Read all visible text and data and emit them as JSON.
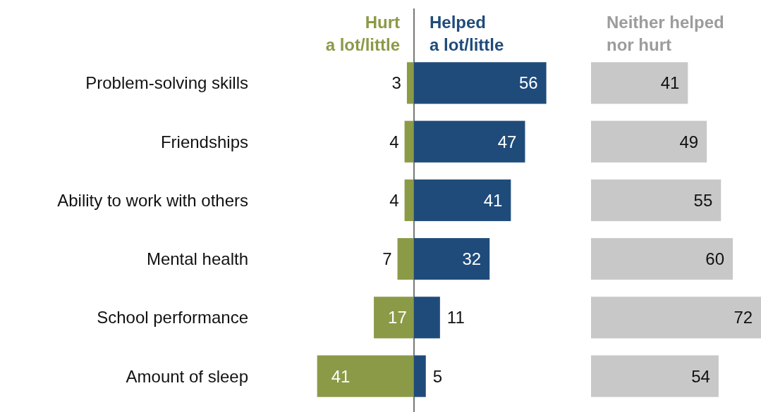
{
  "chart_data": [
    {
      "type": "bar",
      "orientation": "horizontal",
      "categories": [
        "Problem-solving skills",
        "Friendships",
        "Ability to work with others",
        "Mental health",
        "School performance",
        "Amount of sleep"
      ],
      "tick_labels": "y",
      "data_labels": true,
      "xlim": [
        41,
        0
      ],
      "series": [
        {
          "name": "Hurt\na lot/little",
          "color": "#8b9a46",
          "values": [
            3,
            4,
            4,
            7,
            17,
            41
          ]
        }
      ]
    },
    {
      "type": "bar",
      "orientation": "horizontal",
      "categories": [
        null,
        null,
        null,
        null,
        null,
        null
      ],
      "tick_labels": false,
      "data_labels": true,
      "series": [
        {
          "name": "Helped\na lot/little",
          "color": "#1f4b7a",
          "values": [
            56,
            47,
            41,
            32,
            11,
            5
          ]
        }
      ]
    },
    {
      "type": "bar",
      "orientation": "horizontal",
      "categories": [
        null,
        null,
        null,
        null,
        null,
        null
      ],
      "tick_labels": false,
      "data_labels": true,
      "series": [
        {
          "name": "Neither helped\nnor hurt",
          "color": "#c8c8c8",
          "values": [
            41,
            49,
            55,
            60,
            72,
            54
          ]
        }
      ]
    }
  ]
}
